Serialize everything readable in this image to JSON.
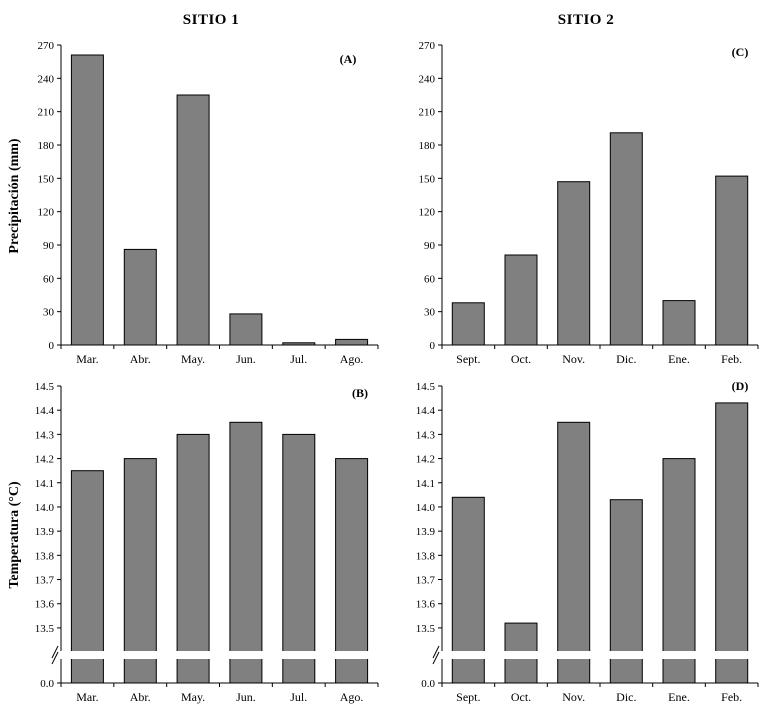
{
  "titles": {
    "site1": "SITIO 1",
    "site2": "SITIO 2"
  },
  "ylabels": {
    "precipitation": "Precipitación (mm)",
    "temperature": "Temperatura (°C)"
  },
  "colors": {
    "bar_fill": "#808080",
    "bar_stroke": "#000000",
    "axis": "#000000",
    "break": "#ffffff"
  },
  "chart_data": [
    {
      "id": "A",
      "panel_label": "(A)",
      "type": "bar",
      "categories": [
        "Mar.",
        "Abr.",
        "May.",
        "Jun.",
        "Jul.",
        "Ago."
      ],
      "values": [
        261,
        86,
        225,
        28,
        2,
        5
      ],
      "ylim": [
        0,
        270
      ],
      "yticks": [
        "0",
        "30",
        "60",
        "90",
        "120",
        "150",
        "180",
        "210",
        "240",
        "270"
      ],
      "ylabel": "Precipitación (mm)",
      "grid": false
    },
    {
      "id": "C",
      "panel_label": "(C)",
      "type": "bar",
      "categories": [
        "Sept.",
        "Oct.",
        "Nov.",
        "Dic.",
        "Ene.",
        "Feb."
      ],
      "values": [
        38,
        81,
        147,
        191,
        40,
        152
      ],
      "ylim": [
        0,
        270
      ],
      "yticks": [
        "0",
        "30",
        "60",
        "90",
        "120",
        "150",
        "180",
        "210",
        "240",
        "270"
      ],
      "ylabel": "",
      "grid": false
    },
    {
      "id": "B",
      "panel_label": "(B)",
      "type": "bar",
      "categories": [
        "Mar.",
        "Abr.",
        "May.",
        "Jun.",
        "Jul.",
        "Ago."
      ],
      "values": [
        14.15,
        14.2,
        14.3,
        14.35,
        14.3,
        14.2
      ],
      "ylim": [
        13.45,
        14.5
      ],
      "axis_break": true,
      "baseline_label": "0.0",
      "yticks": [
        "13.5",
        "13.6",
        "13.7",
        "13.8",
        "13.9",
        "14.0",
        "14.1",
        "14.2",
        "14.3",
        "14.4",
        "14.5"
      ],
      "ylabel": "Temperatura (°C)",
      "grid": false
    },
    {
      "id": "D",
      "panel_label": "(D)",
      "type": "bar",
      "categories": [
        "Sept.",
        "Oct.",
        "Nov.",
        "Dic.",
        "Ene.",
        "Feb."
      ],
      "values": [
        14.04,
        13.52,
        14.35,
        14.03,
        14.2,
        14.43
      ],
      "ylim": [
        13.45,
        14.5
      ],
      "axis_break": true,
      "baseline_label": "0.0",
      "yticks": [
        "13.5",
        "13.6",
        "13.7",
        "13.8",
        "13.9",
        "14.0",
        "14.1",
        "14.2",
        "14.3",
        "14.4",
        "14.5"
      ],
      "ylabel": "",
      "grid": false
    }
  ]
}
